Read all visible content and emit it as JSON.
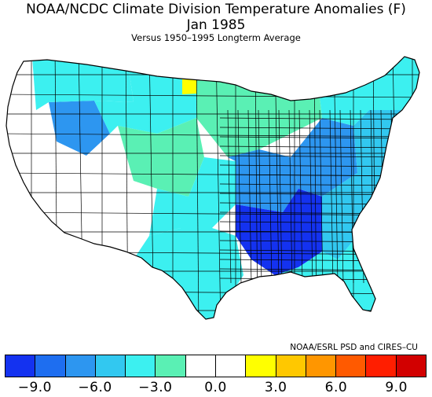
{
  "header": {
    "title": "NOAA/NCDC Climate Division Temperature Anomalies (F)",
    "period": "Jan 1985",
    "subtitle": "Versus 1950–1995 Longterm Average"
  },
  "credit": "NOAA/ESRL PSD and CIRES–CU",
  "legend": {
    "colors": [
      "#1432f0",
      "#1e6ef0",
      "#2d96f0",
      "#32c8f0",
      "#3cf0f0",
      "#5af0b4",
      "#ffffff",
      "#ffffff",
      "#ffff00",
      "#ffc800",
      "#ff9600",
      "#ff5a00",
      "#ff1e00",
      "#d20000"
    ],
    "ticks": [
      "−9.0",
      "−6.0",
      "−3.0",
      "0.0",
      "3.0",
      "6.0",
      "9.0"
    ]
  },
  "map": {
    "outline_color": "#000000",
    "regions": [
      {
        "name": "washington-coast",
        "anomaly": -1.5
      },
      {
        "name": "oregon-california-coast",
        "anomaly": 0.0
      },
      {
        "name": "idaho-oregon-basin",
        "anomaly": -7.5
      },
      {
        "name": "pacific-northwest-interior",
        "anomaly": -4.5
      },
      {
        "name": "northern-rockies-plains",
        "anomaly": -3.5
      },
      {
        "name": "north-dakota-northeast",
        "anomaly": 1.5
      },
      {
        "name": "upper-midwest",
        "anomaly": -2.0
      },
      {
        "name": "great-basin",
        "anomaly": -0.5
      },
      {
        "name": "southwest",
        "anomaly": 0.0
      },
      {
        "name": "southern-rockies",
        "anomaly": -2.0
      },
      {
        "name": "great-plains",
        "anomaly": -4.5
      },
      {
        "name": "texas",
        "anomaly": -4.5
      },
      {
        "name": "central-mississippi-valley",
        "anomaly": -7.5
      },
      {
        "name": "lower-mississippi-valley",
        "anomaly": -10.0
      },
      {
        "name": "ohio-valley",
        "anomaly": -6.5
      },
      {
        "name": "southeast",
        "anomaly": -5.0
      },
      {
        "name": "gulf-coast-florida",
        "anomaly": -4.0
      },
      {
        "name": "great-lakes",
        "anomaly": -4.0
      },
      {
        "name": "mid-atlantic",
        "anomaly": -5.0
      },
      {
        "name": "northeast",
        "anomaly": -4.5
      }
    ]
  }
}
